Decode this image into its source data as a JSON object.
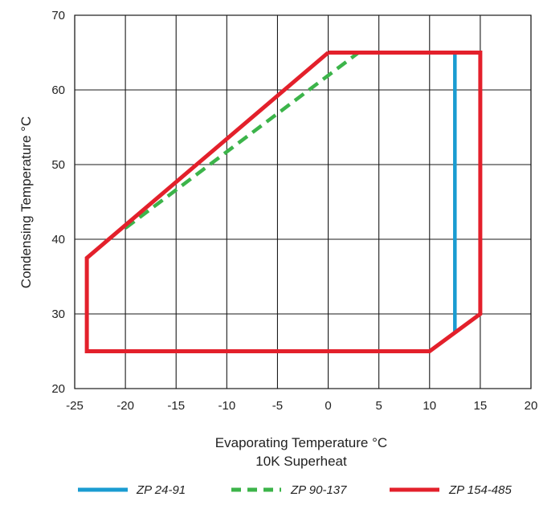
{
  "chart_data": {
    "type": "line",
    "xlabel": "Evaporating Temperature °C",
    "xlabel_sub": "10K Superheat",
    "ylabel": "Condensing Temperature °C",
    "xlim": [
      -25,
      20
    ],
    "ylim": [
      20,
      70
    ],
    "xticks": [
      -25,
      -20,
      -15,
      -10,
      -5,
      0,
      5,
      10,
      15,
      20
    ],
    "yticks": [
      20,
      30,
      40,
      50,
      60,
      70
    ],
    "xtick_labels": [
      "-25",
      "-20",
      "-15",
      "-10",
      "-5",
      "0",
      "5",
      "10",
      "15",
      "20"
    ],
    "ytick_labels": [
      "20",
      "30",
      "40",
      "50",
      "60",
      "70"
    ],
    "grid": true,
    "legend_position": "bottom",
    "series": [
      {
        "name": "ZP 24-91",
        "color": "#1a9cd1",
        "style": "solid",
        "x": [
          12.5,
          12.5
        ],
        "y": [
          65,
          27.5
        ]
      },
      {
        "name": "ZP 90-137",
        "color": "#3cb44a",
        "style": "dashed",
        "x": [
          -20,
          3
        ],
        "y": [
          41.5,
          65
        ]
      },
      {
        "name": "ZP 154-485",
        "color": "#e3202b",
        "style": "solid",
        "x": [
          0,
          15,
          15,
          10,
          -23.8,
          -23.8,
          0
        ],
        "y": [
          65,
          65,
          30,
          25,
          25,
          37.5,
          65
        ]
      }
    ]
  }
}
